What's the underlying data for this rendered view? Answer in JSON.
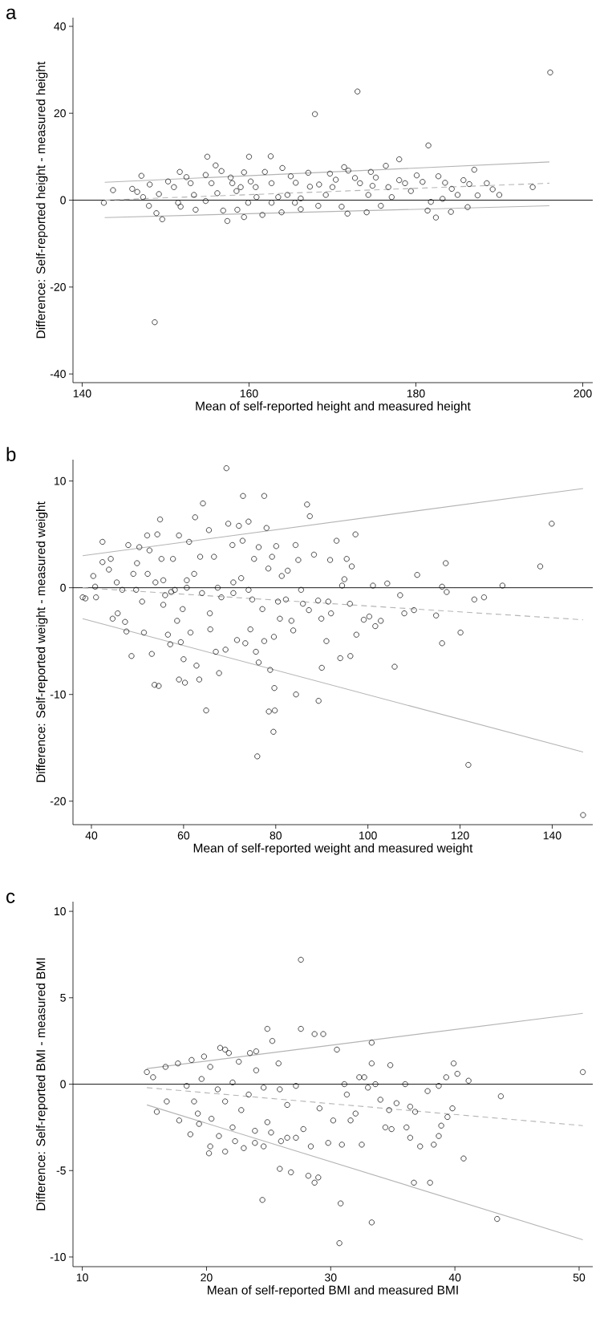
{
  "chart_data": [
    {
      "type": "scatter",
      "title": "a",
      "xlabel": "Mean of self-reported height and measured height",
      "ylabel": "Difference: Self-reported height - measured height",
      "xlim": [
        138.9,
        201.2
      ],
      "ylim": [
        -42,
        42
      ],
      "xticks": [
        140,
        160,
        180,
        200
      ],
      "yticks": [
        -40,
        -20,
        0,
        20,
        40
      ],
      "ref_lines": [
        {
          "axis": "y",
          "value": 0,
          "color": "#000000"
        }
      ],
      "series": [
        {
          "color": "#000000",
          "marker": "circle",
          "x": [
            142.6,
            143.7,
            146.0,
            147.1,
            146.6,
            147.3,
            148.0,
            148.1,
            148.9,
            148.7,
            149.6,
            149.2,
            150.3,
            151.0,
            151.7,
            151.8,
            152.5,
            153.0,
            153.4,
            153.6,
            155.0,
            154.8,
            155.5,
            156.2,
            156.9,
            156.0,
            156.7,
            157.4,
            157.8,
            158.5,
            158.6,
            159.4,
            159.4,
            160.0,
            160.2,
            160.9,
            161.6,
            162.6,
            161.9,
            162.7,
            163.5,
            163.9,
            164.0,
            165.0,
            165.6,
            165.5,
            166.2,
            166.2,
            167.1,
            167.3,
            167.9,
            168.3,
            168.4,
            169.7,
            170.0,
            170.4,
            171.1,
            171.4,
            171.9,
            171.8,
            172.7,
            173.0,
            173.3,
            174.1,
            174.6,
            174.8,
            175.2,
            175.8,
            176.4,
            176.7,
            178.0,
            178.0,
            178.7,
            179.4,
            180.1,
            180.8,
            181.5,
            181.4,
            181.8,
            182.4,
            182.7,
            183.5,
            184.2,
            184.3,
            185.0,
            185.7,
            186.2,
            186.4,
            187.0,
            187.4,
            188.5,
            189.2,
            190.0,
            194.0,
            196.1,
            159.0,
            159.9,
            158.0,
            164.6,
            162.7,
            169.2,
            174.3,
            177.1,
            183.2,
            154.8,
            151.5,
            160.8
          ],
          "values": [
            -0.6,
            2.3,
            2.6,
            5.6,
            1.9,
            0.7,
            -1.3,
            3.6,
            -3.0,
            -28.1,
            -4.4,
            1.4,
            4.3,
            3.0,
            6.5,
            -1.5,
            5.3,
            3.9,
            1.2,
            -2.2,
            10.0,
            5.8,
            3.9,
            1.6,
            -2.4,
            8.0,
            6.7,
            -4.8,
            5.2,
            2.1,
            -2.2,
            6.4,
            -3.9,
            10.0,
            4.3,
            0.7,
            -3.4,
            10.1,
            6.5,
            3.9,
            0.7,
            -2.8,
            7.4,
            5.5,
            4.0,
            -0.6,
            -2.1,
            0.4,
            6.3,
            3.1,
            19.8,
            -1.3,
            3.6,
            6.1,
            3.0,
            4.7,
            -1.5,
            7.6,
            6.8,
            -3.1,
            5.1,
            25.0,
            3.9,
            -2.8,
            6.5,
            3.3,
            5.2,
            -1.3,
            7.9,
            3.0,
            9.4,
            4.6,
            3.9,
            2.1,
            5.7,
            4.2,
            12.6,
            -2.4,
            -0.4,
            -4.0,
            5.5,
            4.0,
            -2.7,
            2.6,
            1.2,
            4.6,
            -1.6,
            3.7,
            7.0,
            1.1,
            3.9,
            2.5,
            1.2,
            3.0,
            29.4,
            3.0,
            -0.6,
            3.9,
            1.2,
            -0.6,
            1.2,
            1.2,
            0.7,
            0.3,
            -0.2,
            -0.6,
            3.0
          ]
        },
        {
          "type": "line",
          "color": "#b4b4b4",
          "line_style": "solid",
          "x": [
            142.7,
            196.0
          ],
          "values": [
            4.1,
            8.8
          ]
        },
        {
          "type": "line",
          "color": "#b4b4b4",
          "line_style": "solid",
          "x": [
            142.7,
            196.0
          ],
          "values": [
            -4.0,
            -1.3
          ]
        },
        {
          "type": "line",
          "color": "#b4b4b4",
          "line_style": "dashed",
          "x": [
            142.7,
            196.0
          ],
          "values": [
            0,
            3.9
          ]
        }
      ]
    },
    {
      "type": "scatter",
      "title": "b",
      "xlabel": "Mean of self-reported weight and measured weight",
      "ylabel": "Difference: Self-reported weight - measured weight",
      "xlim": [
        36.0,
        148.8
      ],
      "ylim": [
        -22.2,
        12.0
      ],
      "xticks": [
        40,
        60,
        80,
        100,
        120,
        140
      ],
      "yticks": [
        -20,
        -10,
        0,
        10
      ],
      "ref_lines": [
        {
          "axis": "y",
          "value": 0,
          "color": "#000000"
        }
      ],
      "series": [
        {
          "color": "#000000",
          "marker": "circle",
          "x": [
            38.1,
            38.7,
            40.4,
            40.8,
            41.0,
            42.4,
            42.4,
            43.8,
            44.2,
            44.6,
            45.5,
            45.7,
            46.7,
            47.3,
            47.6,
            48.0,
            48.7,
            49.1,
            49.9,
            50.4,
            51.0,
            51.4,
            52.1,
            52.6,
            53.1,
            53.7,
            54.3,
            54.6,
            54.9,
            55.2,
            55.6,
            56.0,
            56.6,
            57.1,
            57.7,
            58.1,
            58.6,
            59.0,
            59.0,
            59.4,
            60.0,
            60.3,
            60.7,
            61.2,
            61.5,
            62.5,
            62.8,
            63.4,
            63.6,
            64.2,
            64.9,
            65.5,
            65.8,
            66.6,
            67.0,
            67.7,
            68.2,
            69.1,
            69.3,
            69.7,
            70.6,
            70.8,
            71.6,
            72.0,
            72.8,
            72.9,
            73.4,
            74.1,
            74.5,
            74.9,
            75.3,
            75.7,
            76.0,
            76.3,
            76.3,
            77.1,
            77.5,
            77.5,
            78.0,
            78.4,
            78.5,
            78.8,
            79.2,
            79.5,
            79.6,
            79.7,
            79.8,
            80.1,
            80.5,
            80.9,
            81.3,
            82.2,
            82.6,
            83.4,
            83.8,
            84.3,
            84.4,
            84.9,
            85.5,
            85.9,
            86.8,
            87.4,
            87.2,
            88.3,
            89.2,
            89.3,
            89.9,
            90.0,
            91.0,
            91.4,
            91.8,
            92.0,
            93.2,
            94.0,
            94.4,
            94.9,
            95.4,
            96.1,
            96.2,
            96.5,
            97.3,
            97.5,
            99.1,
            100.3,
            101.1,
            101.6,
            102.8,
            104.2,
            105.8,
            107.0,
            107.9,
            110.0,
            110.7,
            114.8,
            116.1,
            116.1,
            116.9,
            117.1,
            120.1,
            121.8,
            123.1,
            125.2,
            129.2,
            137.4,
            139.9,
            146.7,
            49.7,
            53.9,
            57.3,
            60.7,
            64.0,
            67.4,
            70.8,
            74.1,
            52.2,
            55.6,
            62.3,
            65.7,
            72.5,
            59.8
          ],
          "values": [
            -0.9,
            -1.0,
            1.1,
            0.1,
            -0.9,
            4.3,
            2.4,
            1.7,
            2.7,
            -2.9,
            0.5,
            -2.4,
            -0.2,
            -3.2,
            -4.1,
            4.0,
            -6.4,
            1.3,
            2.3,
            3.8,
            -1.3,
            -4.2,
            4.9,
            3.5,
            -6.2,
            -9.1,
            5.0,
            -9.2,
            6.4,
            2.7,
            0.7,
            -0.7,
            -4.4,
            -5.3,
            2.7,
            -0.2,
            -3.1,
            4.9,
            -8.6,
            -5.1,
            -6.7,
            -8.9,
            0.7,
            4.3,
            -4.2,
            6.6,
            -7.3,
            -8.6,
            2.9,
            7.9,
            -11.5,
            5.4,
            -3.9,
            2.9,
            -6.0,
            -8.0,
            -0.9,
            -5.8,
            11.2,
            6.0,
            4.0,
            0.5,
            -4.9,
            5.8,
            4.4,
            8.6,
            -5.2,
            6.2,
            -3.9,
            -1.1,
            2.7,
            -6.0,
            -15.8,
            3.8,
            -7.0,
            -2.0,
            8.6,
            -5.0,
            5.6,
            1.8,
            -11.6,
            -7.7,
            2.9,
            -13.5,
            -4.6,
            -9.4,
            -11.5,
            3.9,
            -1.3,
            -2.9,
            1.1,
            -1.1,
            1.6,
            -3.1,
            -4.0,
            4.0,
            -10.0,
            2.6,
            -0.2,
            -1.5,
            7.8,
            6.7,
            -2.1,
            3.1,
            -1.2,
            -10.6,
            -2.9,
            -7.5,
            -5.0,
            -1.3,
            2.6,
            -2.4,
            4.4,
            -6.6,
            0.2,
            0.8,
            2.7,
            -1.5,
            -6.4,
            2.0,
            5.0,
            -4.4,
            -3.0,
            -2.7,
            0.2,
            -3.6,
            -3.1,
            0.4,
            -7.4,
            -0.7,
            -2.4,
            -2.1,
            1.2,
            -2.6,
            -5.2,
            0.1,
            2.3,
            -0.4,
            -4.2,
            -16.6,
            -1.1,
            -0.9,
            0.2,
            2.0,
            6.0,
            -21.3,
            -0.2,
            0.5,
            -0.4,
            0,
            -0.5,
            0,
            -0.5,
            -0.2,
            1.3,
            -1.6,
            1.3,
            -2.4,
            0.9,
            -2.0
          ]
        },
        {
          "type": "line",
          "color": "#b4b4b4",
          "line_style": "solid",
          "x": [
            38.1,
            146.7
          ],
          "values": [
            3.0,
            9.3
          ]
        },
        {
          "type": "line",
          "color": "#b4b4b4",
          "line_style": "solid",
          "x": [
            38.1,
            146.7
          ],
          "values": [
            -2.9,
            -15.4
          ]
        },
        {
          "type": "line",
          "color": "#b4b4b4",
          "line_style": "dashed",
          "x": [
            38.1,
            146.7
          ],
          "values": [
            0,
            -3.0
          ]
        }
      ]
    },
    {
      "type": "scatter",
      "title": "c",
      "xlabel": "Mean of self-reported BMI and measured BMI",
      "ylabel": "Difference: Self-reported BMI - measured BMI",
      "xlim": [
        9.25,
        51.1
      ],
      "ylim": [
        -10.56,
        10.56
      ],
      "xticks": [
        10,
        20,
        30,
        40,
        50
      ],
      "yticks": [
        -10,
        -5,
        0,
        5,
        10
      ],
      "ref_lines": [
        {
          "axis": "y",
          "value": 0,
          "color": "#000000"
        }
      ],
      "series": [
        {
          "color": "#000000",
          "marker": "circle",
          "x": [
            15.2,
            15.7,
            16.0,
            16.7,
            16.8,
            17.7,
            17.8,
            18.7,
            18.8,
            19.3,
            19.4,
            19.8,
            20.2,
            20.3,
            20.4,
            21.0,
            21.1,
            21.5,
            21.5,
            21.8,
            22.1,
            22.3,
            22.6,
            23.0,
            23.5,
            24.0,
            23.9,
            23.9,
            24.5,
            24.6,
            24.9,
            24.9,
            25.3,
            25.2,
            25.8,
            25.9,
            26.0,
            26.5,
            26.8,
            27.2,
            27.6,
            27.6,
            27.8,
            28.2,
            28.4,
            28.7,
            28.7,
            29.0,
            29.1,
            29.4,
            29.8,
            30.2,
            30.5,
            30.7,
            30.8,
            30.9,
            31.1,
            31.3,
            31.6,
            32.0,
            32.3,
            32.5,
            32.7,
            33.0,
            33.3,
            33.3,
            33.3,
            33.6,
            34.0,
            34.4,
            34.7,
            34.8,
            34.9,
            35.3,
            36.0,
            36.1,
            36.4,
            36.4,
            36.7,
            36.8,
            37.2,
            37.8,
            38.0,
            38.3,
            38.7,
            38.7,
            38.9,
            39.3,
            39.4,
            39.8,
            39.9,
            40.2,
            40.7,
            41.1,
            43.7,
            43.4,
            50.3,
            18.4,
            19.6,
            20.9,
            22.1,
            23.4,
            24.6,
            25.9,
            21.5,
            22.8,
            19.0,
            24.0,
            26.5,
            27.2,
            20.3
          ],
          "values": [
            0.7,
            0.4,
            -1.6,
            1.0,
            -1.0,
            1.2,
            -2.1,
            -2.9,
            1.4,
            -1.7,
            -2.3,
            1.6,
            -4.0,
            -3.6,
            -2.0,
            -3.0,
            2.1,
            -3.9,
            2.0,
            1.8,
            -2.5,
            -3.3,
            1.3,
            -3.7,
            1.8,
            1.9,
            -2.7,
            -3.4,
            -6.7,
            -3.6,
            3.2,
            -2.2,
            2.5,
            -2.8,
            1.2,
            -4.9,
            -3.3,
            -3.1,
            -5.1,
            -3.1,
            7.2,
            3.2,
            -2.6,
            -5.3,
            -3.6,
            -5.7,
            2.9,
            -5.4,
            -1.4,
            2.9,
            -3.4,
            -2.1,
            2.0,
            -9.2,
            -6.9,
            -3.5,
            0,
            -0.6,
            -2.1,
            -1.7,
            0.4,
            -3.5,
            0.4,
            -0.2,
            2.4,
            -8.0,
            1.2,
            0,
            -0.9,
            -2.5,
            -1.5,
            1.1,
            -2.6,
            -1.1,
            0,
            -2.5,
            -1.3,
            -3.1,
            -5.7,
            -1.6,
            -3.6,
            -0.4,
            -5.7,
            -3.5,
            -3.0,
            -0.1,
            -2.4,
            0.4,
            -1.9,
            -1.4,
            1.2,
            0.6,
            -4.3,
            0.2,
            -0.7,
            -7.8,
            0.7,
            -0.1,
            0.3,
            -0.3,
            0.1,
            -0.6,
            -0.2,
            -0.3,
            -1.0,
            -1.5,
            -1.0,
            0.8,
            -1.2,
            -0.1,
            1.0
          ]
        },
        {
          "type": "line",
          "color": "#b4b4b4",
          "line_style": "solid",
          "x": [
            15.2,
            50.3
          ],
          "values": [
            0.9,
            4.1
          ]
        },
        {
          "type": "line",
          "color": "#b4b4b4",
          "line_style": "solid",
          "x": [
            15.2,
            50.3
          ],
          "values": [
            -1.2,
            -9.0
          ]
        },
        {
          "type": "line",
          "color": "#b4b4b4",
          "line_style": "dashed",
          "x": [
            15.2,
            50.3
          ],
          "values": [
            -0.2,
            -2.4
          ]
        }
      ]
    }
  ]
}
